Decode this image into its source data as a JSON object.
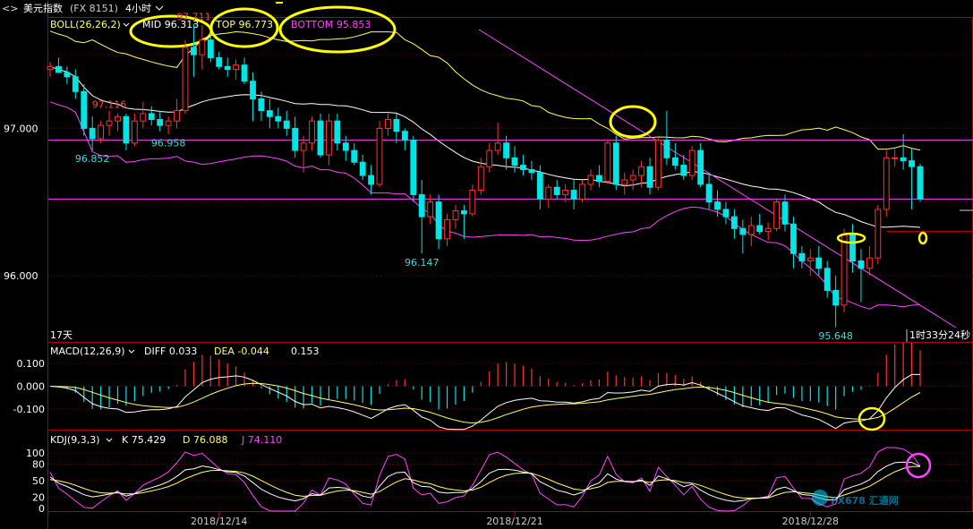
{
  "header": {
    "symbol": "美元指数",
    "code": "(FX 8151)",
    "period": "4小时"
  },
  "boll": {
    "label": "BOLL(26,26,2)",
    "mid": "MID 96.313",
    "top": "TOP 96.773",
    "bottom": "BOTTOM 95.853"
  },
  "macd": {
    "label": "MACD(12,26,9)",
    "diff": "DIFF 0.033",
    "dea": "DEA -0.044",
    "macd": "0.153"
  },
  "kdj": {
    "label": "KDJ(9,3,3)",
    "k": "K 75.429",
    "d": "D 76.088",
    "j": "J 74.110"
  },
  "status": {
    "days": "17天",
    "countdown": "1时33分24秒"
  },
  "watermark": "FX678 汇通网",
  "colors": {
    "up": "#ff3232",
    "down": "#00e5e5",
    "mid": "#ffffff",
    "band": "#ffff66",
    "bottom_band": "#ff44ff",
    "highlight": "#ffff00",
    "trend": "#ff44ff"
  },
  "chart_data": [
    {
      "type": "candlestick",
      "title": "BOLL(26,26,2)",
      "ylim": [
        95.55,
        97.75
      ],
      "y_ticks": [
        "97.000",
        "96.000"
      ],
      "x_ticks": [
        "2018/12/14",
        "2018/12/21",
        "2018/12/28"
      ],
      "annotations": [
        {
          "text": "97.711",
          "value": 97.711
        },
        {
          "text": "96.852",
          "value": 96.852
        },
        {
          "text": "96.147",
          "value": 96.147
        },
        {
          "text": "97.116",
          "value": 97.116
        },
        {
          "text": "96.958",
          "value": 96.958
        },
        {
          "text": "95.648",
          "value": 95.648
        }
      ],
      "horizontal_levels": [
        96.92,
        96.52
      ],
      "ohlc": [
        [
          97.4,
          97.45,
          97.35,
          97.42
        ],
        [
          97.42,
          97.48,
          97.38,
          97.38
        ],
        [
          97.38,
          97.42,
          97.3,
          97.35
        ],
        [
          97.35,
          97.4,
          97.2,
          97.25
        ],
        [
          97.25,
          97.3,
          96.95,
          97.0
        ],
        [
          97.0,
          97.08,
          96.85,
          96.93
        ],
        [
          96.93,
          97.05,
          96.9,
          97.02
        ],
        [
          97.02,
          97.12,
          96.95,
          97.05
        ],
        [
          97.05,
          97.1,
          96.98,
          97.08
        ],
        [
          97.08,
          97.1,
          96.85,
          96.9
        ],
        [
          96.9,
          97.1,
          96.88,
          97.05
        ],
        [
          97.05,
          97.18,
          97.0,
          97.1
        ],
        [
          97.1,
          97.15,
          97.02,
          97.06
        ],
        [
          97.06,
          97.12,
          96.98,
          97.02
        ],
        [
          97.02,
          97.08,
          96.96,
          97.05
        ],
        [
          97.05,
          97.2,
          97.0,
          97.12
        ],
        [
          97.12,
          97.6,
          97.1,
          97.55
        ],
        [
          97.55,
          97.71,
          97.35,
          97.5
        ],
        [
          97.5,
          97.7,
          97.4,
          97.6
        ],
        [
          97.6,
          97.65,
          97.45,
          97.48
        ],
        [
          97.48,
          97.52,
          97.4,
          97.42
        ],
        [
          97.42,
          97.48,
          97.35,
          97.4
        ],
        [
          97.4,
          97.47,
          97.33,
          97.43
        ],
        [
          97.43,
          97.48,
          97.3,
          97.32
        ],
        [
          97.32,
          97.38,
          97.05,
          97.2
        ],
        [
          97.2,
          97.25,
          97.05,
          97.12
        ],
        [
          97.12,
          97.2,
          97.0,
          97.08
        ],
        [
          97.08,
          97.14,
          97.0,
          97.05
        ],
        [
          97.05,
          97.12,
          96.95,
          97.0
        ],
        [
          97.0,
          97.08,
          96.8,
          96.85
        ],
        [
          96.85,
          96.95,
          96.7,
          96.9
        ],
        [
          96.9,
          97.08,
          96.85,
          97.05
        ],
        [
          97.05,
          97.1,
          96.8,
          96.82
        ],
        [
          96.82,
          97.1,
          96.75,
          97.05
        ],
        [
          97.05,
          97.1,
          96.85,
          96.9
        ],
        [
          96.9,
          96.95,
          96.78,
          96.85
        ],
        [
          96.85,
          96.9,
          96.75,
          96.77
        ],
        [
          96.77,
          96.82,
          96.65,
          96.68
        ],
        [
          96.68,
          96.75,
          96.55,
          96.62
        ],
        [
          96.62,
          97.05,
          96.6,
          97.0
        ],
        [
          97.0,
          97.1,
          96.95,
          97.06
        ],
        [
          97.06,
          97.1,
          96.9,
          96.98
        ],
        [
          96.98,
          97.0,
          96.85,
          96.92
        ],
        [
          96.92,
          96.95,
          96.5,
          96.55
        ],
        [
          96.55,
          96.65,
          96.15,
          96.4
        ],
        [
          96.4,
          96.55,
          96.35,
          96.5
        ],
        [
          96.5,
          96.55,
          96.18,
          96.25
        ],
        [
          96.25,
          96.42,
          96.2,
          96.38
        ],
        [
          96.38,
          96.48,
          96.32,
          96.44
        ],
        [
          96.44,
          96.48,
          96.25,
          96.42
        ],
        [
          96.42,
          96.62,
          96.4,
          96.58
        ],
        [
          96.58,
          96.8,
          96.55,
          96.74
        ],
        [
          96.74,
          96.9,
          96.7,
          96.85
        ],
        [
          96.85,
          97.04,
          96.82,
          96.9
        ],
        [
          96.9,
          96.95,
          96.72,
          96.8
        ],
        [
          96.8,
          96.88,
          96.7,
          96.75
        ],
        [
          96.75,
          96.82,
          96.68,
          96.72
        ],
        [
          96.72,
          96.78,
          96.65,
          96.7
        ],
        [
          96.7,
          96.75,
          96.45,
          96.52
        ],
        [
          96.52,
          96.62,
          96.46,
          96.6
        ],
        [
          96.6,
          96.65,
          96.52,
          96.55
        ],
        [
          96.55,
          96.62,
          96.5,
          96.58
        ],
        [
          96.58,
          96.65,
          96.45,
          96.52
        ],
        [
          96.52,
          96.65,
          96.5,
          96.62
        ],
        [
          96.62,
          96.72,
          96.58,
          96.68
        ],
        [
          96.68,
          96.75,
          96.6,
          96.64
        ],
        [
          96.64,
          96.92,
          96.62,
          96.9
        ],
        [
          96.9,
          96.95,
          96.58,
          96.62
        ],
        [
          96.62,
          96.7,
          96.55,
          96.65
        ],
        [
          96.65,
          96.72,
          96.58,
          96.68
        ],
        [
          96.68,
          96.78,
          96.6,
          96.74
        ],
        [
          96.74,
          96.8,
          96.55,
          96.6
        ],
        [
          96.6,
          96.95,
          96.58,
          96.92
        ],
        [
          96.92,
          97.12,
          96.75,
          96.8
        ],
        [
          96.8,
          96.9,
          96.72,
          96.75
        ],
        [
          96.75,
          96.82,
          96.65,
          96.68
        ],
        [
          96.68,
          96.88,
          96.65,
          96.85
        ],
        [
          96.85,
          96.9,
          96.6,
          96.62
        ],
        [
          96.62,
          96.7,
          96.45,
          96.5
        ],
        [
          96.5,
          96.58,
          96.4,
          96.45
        ],
        [
          96.45,
          96.5,
          96.35,
          96.4
        ],
        [
          96.4,
          96.45,
          96.25,
          96.32
        ],
        [
          96.32,
          96.38,
          96.15,
          96.28
        ],
        [
          96.28,
          96.4,
          96.2,
          96.34
        ],
        [
          96.34,
          96.42,
          96.28,
          96.3
        ],
        [
          96.3,
          96.36,
          96.24,
          96.32
        ],
        [
          96.32,
          96.52,
          96.3,
          96.5
        ],
        [
          96.5,
          96.55,
          96.3,
          96.35
        ],
        [
          96.35,
          96.4,
          96.05,
          96.15
        ],
        [
          96.15,
          96.2,
          96.05,
          96.1
        ],
        [
          96.1,
          96.18,
          96.0,
          96.12
        ],
        [
          96.12,
          96.2,
          96.0,
          96.05
        ],
        [
          96.05,
          96.1,
          95.85,
          95.9
        ],
        [
          95.9,
          96.0,
          95.65,
          95.8
        ],
        [
          95.8,
          96.32,
          95.75,
          96.28
        ],
        [
          96.28,
          96.35,
          96.02,
          96.1
        ],
        [
          96.1,
          96.18,
          95.82,
          96.05
        ],
        [
          96.05,
          96.2,
          96.0,
          96.12
        ],
        [
          96.12,
          96.48,
          96.08,
          96.45
        ],
        [
          96.45,
          96.85,
          96.4,
          96.8
        ],
        [
          96.8,
          96.86,
          96.74,
          96.8
        ],
        [
          96.8,
          96.96,
          96.72,
          96.78
        ],
        [
          96.78,
          96.86,
          96.45,
          96.74
        ],
        [
          96.74,
          96.76,
          96.5,
          96.52
        ]
      ]
    },
    {
      "type": "bar",
      "title": "MACD(12,26,9)",
      "y_ticks": [
        "0.100",
        "0.000",
        "-0.100"
      ],
      "ylim": [
        -0.19,
        0.19
      ]
    },
    {
      "type": "line",
      "title": "KDJ(9,3,3)",
      "y_ticks": [
        "100",
        "80",
        "50",
        "20",
        "0"
      ],
      "ylim": [
        -5,
        110
      ],
      "series": [
        {
          "name": "K"
        },
        {
          "name": "D"
        },
        {
          "name": "J"
        }
      ]
    }
  ]
}
